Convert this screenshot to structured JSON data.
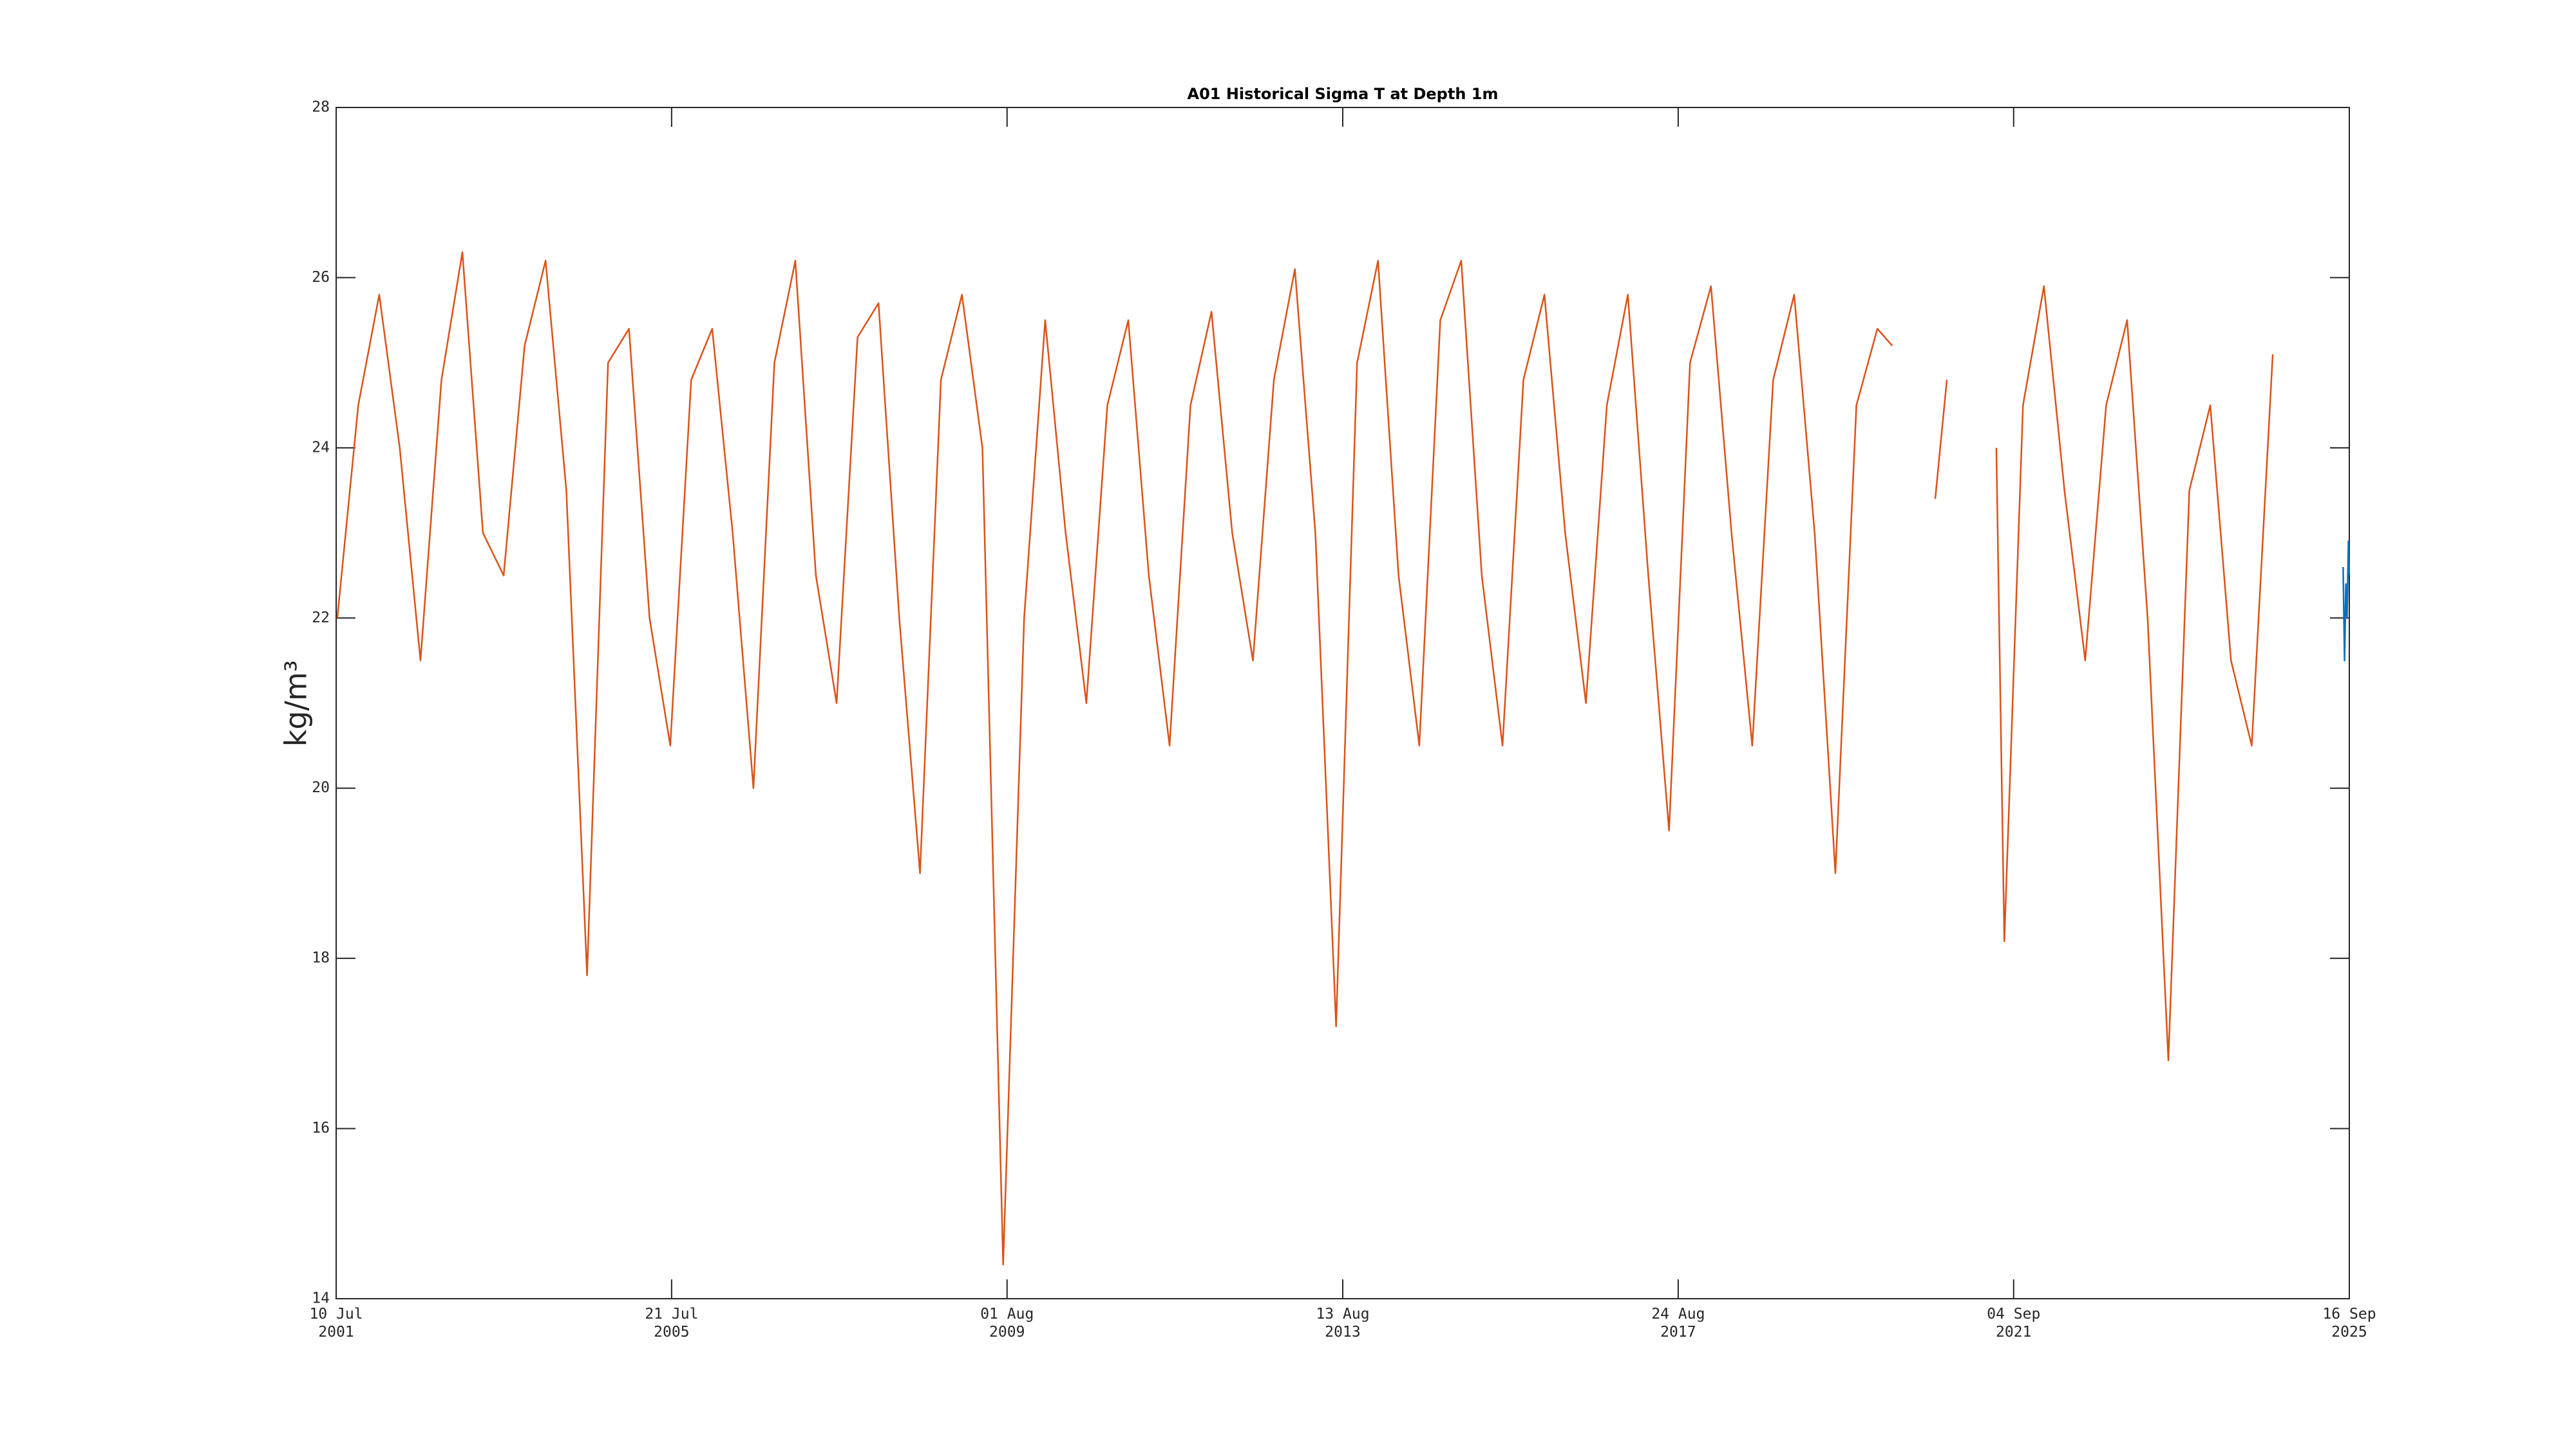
{
  "chart_data": {
    "type": "line",
    "title": "A01 Historical Sigma T at Depth 1m",
    "ylabel": "kg/m³",
    "xlim": [
      "2001-07-10",
      "2025-09-16"
    ],
    "xticks": [
      {
        "value": "2001-07-10",
        "label": "10 Jul\n2001"
      },
      {
        "value": "2005-07-21",
        "label": "21 Jul\n2005"
      },
      {
        "value": "2009-08-01",
        "label": "01 Aug\n2009"
      },
      {
        "value": "2013-08-13",
        "label": "13 Aug\n2013"
      },
      {
        "value": "2017-08-24",
        "label": "24 Aug\n2017"
      },
      {
        "value": "2021-09-04",
        "label": "04 Sep\n2021"
      },
      {
        "value": "2025-09-16",
        "label": "16 Sep\n2025"
      }
    ],
    "ylim": [
      14,
      28
    ],
    "yticks": [
      14,
      16,
      18,
      20,
      22,
      24,
      26,
      28
    ],
    "series": [
      {
        "color": "#d95319",
        "x": [
          "2001-07-15",
          "2001-10-15",
          "2002-01-15",
          "2002-04-15",
          "2002-07-15",
          "2002-10-15",
          "2003-01-15",
          "2003-04-15",
          "2003-07-15",
          "2003-10-15",
          "2004-01-15",
          "2004-04-15",
          "2004-07-15",
          "2004-10-15",
          "2005-01-15",
          "2005-04-15",
          "2005-07-15",
          "2005-10-15",
          "2006-01-15",
          "2006-04-15",
          "2006-07-15",
          "2006-10-15",
          "2007-01-15",
          "2007-04-15",
          "2007-07-15",
          "2007-10-15",
          "2008-01-15",
          "2008-04-15",
          "2008-07-15",
          "2008-10-15",
          "2009-01-15",
          "2009-04-15",
          "2009-07-15",
          "2009-10-15",
          "2010-01-15",
          "2010-04-15",
          "2010-07-15",
          "2010-10-15",
          "2011-01-15",
          "2011-04-15",
          "2011-07-15",
          "2011-10-15",
          "2012-01-15",
          "2012-04-15",
          "2012-07-15",
          "2012-10-15",
          "2013-01-15",
          "2013-04-15",
          "2013-07-15",
          "2013-10-15",
          "2014-01-15",
          "2014-04-15",
          "2014-07-15",
          "2014-10-15",
          "2015-01-15",
          "2015-04-15",
          "2015-07-15",
          "2015-10-15",
          "2016-01-15",
          "2016-04-15",
          "2016-07-15",
          "2016-10-15",
          "2017-01-15",
          "2017-04-15",
          "2017-07-15",
          "2017-10-15",
          "2018-01-15",
          "2018-04-15",
          "2018-07-15",
          "2018-10-15",
          "2019-01-15",
          "2019-04-15",
          "2019-07-15",
          "2019-10-15",
          "2020-01-15",
          "2020-03-20",
          "2020-06-15",
          "2020-09-25",
          "2020-11-15",
          "2021-01-15",
          "2021-06-20",
          "2021-07-25",
          "2021-10-15",
          "2022-01-15",
          "2022-04-15",
          "2022-07-15",
          "2022-10-15",
          "2023-01-15",
          "2023-04-15",
          "2023-07-15",
          "2023-10-15",
          "2024-01-15",
          "2024-04-15",
          "2024-07-15",
          "2024-10-15"
        ],
        "values": [
          22.0,
          24.5,
          25.8,
          24.0,
          21.5,
          24.8,
          26.3,
          23.0,
          22.5,
          25.2,
          26.2,
          23.5,
          17.8,
          25.0,
          25.4,
          22.0,
          20.5,
          24.8,
          25.4,
          23.0,
          20.0,
          25.0,
          26.2,
          22.5,
          21.0,
          25.3,
          25.7,
          22.0,
          19.0,
          24.8,
          25.8,
          24.0,
          14.4,
          22.0,
          25.5,
          23.0,
          21.0,
          24.5,
          25.5,
          22.5,
          20.5,
          24.5,
          25.6,
          23.0,
          21.5,
          24.8,
          26.1,
          23.0,
          17.2,
          25.0,
          26.2,
          22.5,
          20.5,
          25.5,
          26.2,
          22.5,
          20.5,
          24.8,
          25.8,
          23.0,
          21.0,
          24.5,
          25.8,
          22.5,
          19.5,
          25.0,
          25.9,
          23.0,
          20.5,
          24.8,
          25.8,
          23.0,
          19.0,
          24.5,
          25.4,
          25.2,
          null,
          23.4,
          24.8,
          null,
          24.0,
          18.2,
          24.5,
          25.9,
          23.5,
          21.5,
          24.5,
          25.5,
          22.0,
          16.8,
          23.5,
          24.5,
          21.5,
          20.5,
          25.1
        ]
      },
      {
        "color": "#0072bd",
        "x": [
          "2025-08-20",
          "2025-08-26",
          "2025-09-01",
          "2025-09-06",
          "2025-09-12",
          "2025-09-16"
        ],
        "values": [
          22.6,
          21.5,
          22.4,
          22.0,
          22.9,
          22.5
        ]
      }
    ]
  }
}
